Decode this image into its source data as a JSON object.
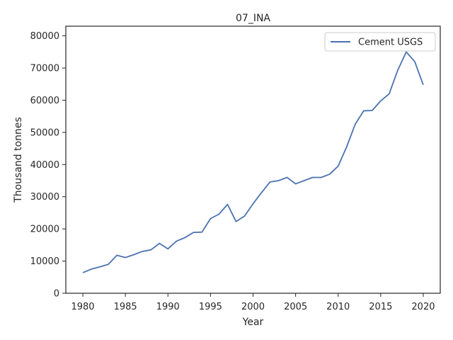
{
  "chart_data": {
    "type": "line",
    "title": "07_INA",
    "xlabel": "Year",
    "ylabel": "Thousand tonnes",
    "xlim": [
      1978.0,
      2022.0
    ],
    "ylim": [
      0,
      83000
    ],
    "xticks": [
      1980,
      1985,
      1990,
      1995,
      2000,
      2005,
      2010,
      2015,
      2020
    ],
    "yticks": [
      0,
      10000,
      20000,
      30000,
      40000,
      50000,
      60000,
      70000,
      80000
    ],
    "grid": false,
    "legend_position": "top-right",
    "series": [
      {
        "name": "Cement USGS",
        "color": "#4c72b0",
        "x": [
          1980,
          1981,
          1982,
          1983,
          1984,
          1985,
          1986,
          1987,
          1988,
          1989,
          1990,
          1991,
          1992,
          1993,
          1994,
          1995,
          1996,
          1997,
          1998,
          1999,
          2000,
          2001,
          2002,
          2003,
          2004,
          2005,
          2006,
          2007,
          2008,
          2009,
          2010,
          2011,
          2012,
          2013,
          2014,
          2015,
          2016,
          2017,
          2018,
          2019,
          2020
        ],
        "values": [
          6400,
          7500,
          8200,
          9000,
          11800,
          11100,
          12000,
          13000,
          13500,
          15500,
          13800,
          16200,
          17300,
          18900,
          19000,
          23200,
          24600,
          27600,
          22300,
          24000,
          27800,
          31300,
          34600,
          35000,
          36000,
          34000,
          35000,
          36000,
          36000,
          37000,
          39500,
          45500,
          52500,
          56700,
          56800,
          59800,
          62000,
          69300,
          75000,
          72000,
          64800
        ]
      }
    ]
  }
}
